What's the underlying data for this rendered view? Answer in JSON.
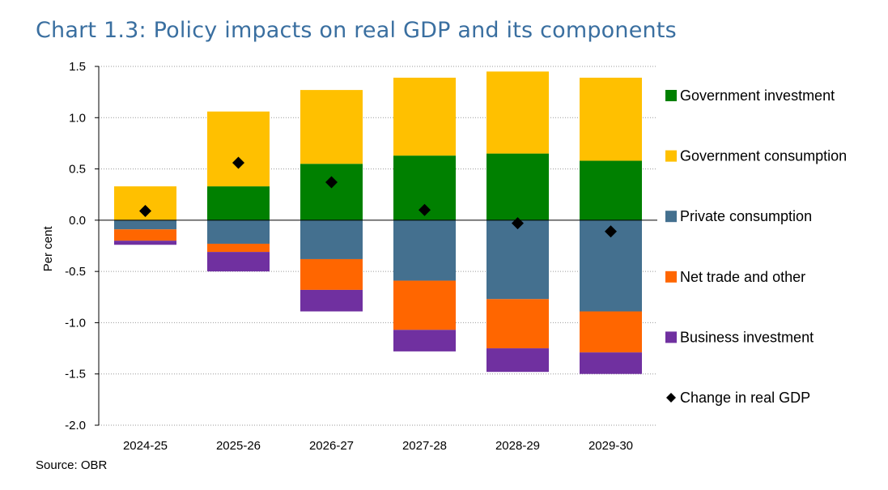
{
  "title": "Chart 1.3: Policy impacts on real GDP and its components",
  "source": "Source: OBR",
  "chart_data": {
    "type": "bar",
    "stacked": true,
    "categories": [
      "2024-25",
      "2025-26",
      "2026-27",
      "2027-28",
      "2028-29",
      "2029-30"
    ],
    "ylabel": "Per cent",
    "xlabel": "",
    "ylim": [
      -2.0,
      1.5
    ],
    "yticks": [
      "1.5",
      "1.0",
      "0.5",
      "0.0",
      "-0.5",
      "-1.0",
      "-1.5",
      "-2.0"
    ],
    "grid": true,
    "legend_position": "right",
    "series": [
      {
        "name": "Government investment",
        "color": "#008000",
        "values": [
          0.0,
          0.33,
          0.55,
          0.63,
          0.65,
          0.58
        ]
      },
      {
        "name": "Government consumption",
        "color": "#ffc000",
        "values": [
          0.33,
          0.73,
          0.72,
          0.76,
          0.8,
          0.81
        ]
      },
      {
        "name": "Private consumption",
        "color": "#44708f",
        "values": [
          -0.09,
          -0.23,
          -0.38,
          -0.59,
          -0.77,
          -0.89
        ]
      },
      {
        "name": "Net trade and other",
        "color": "#ff6600",
        "values": [
          -0.11,
          -0.08,
          -0.3,
          -0.48,
          -0.48,
          -0.4
        ]
      },
      {
        "name": "Business investment",
        "color": "#7030a0",
        "values": [
          -0.04,
          -0.19,
          -0.21,
          -0.21,
          -0.23,
          -0.21
        ]
      }
    ],
    "line_series": {
      "name": "Change in real GDP",
      "color": "#000000",
      "marker": "diamond",
      "values": [
        0.09,
        0.56,
        0.37,
        0.1,
        -0.03,
        -0.11
      ]
    }
  }
}
